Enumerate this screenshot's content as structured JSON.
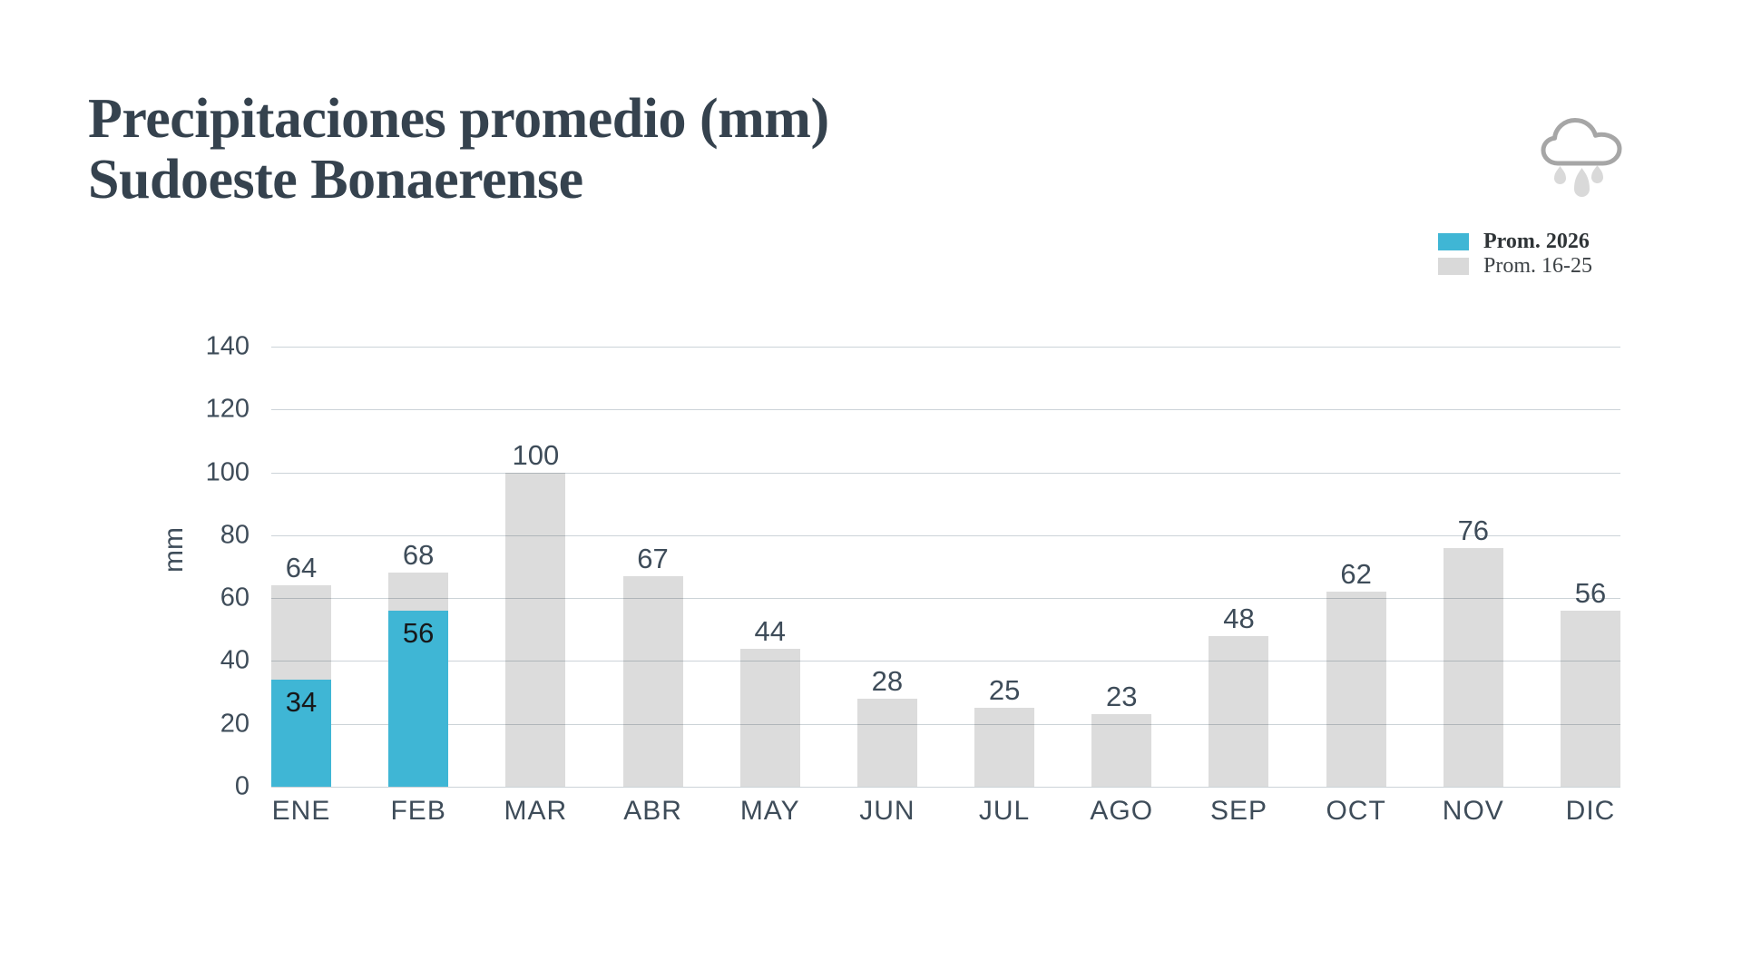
{
  "title": {
    "line1": "Precipitaciones promedio (mm)",
    "line2": "Sudoeste Bonaerense"
  },
  "legend": {
    "items": [
      {
        "label": "Prom. 2026",
        "color": "#3fb6d5",
        "bold": true
      },
      {
        "label": "Prom. 16-25",
        "color": "#d9d9d9",
        "bold": false
      }
    ]
  },
  "icons": {
    "header_icon": "rain-cloud-icon"
  },
  "chart_data": {
    "type": "bar",
    "title": "Precipitaciones promedio (mm) Sudoeste Bonaerense",
    "categories": [
      "ENE",
      "FEB",
      "MAR",
      "ABR",
      "MAY",
      "JUN",
      "JUL",
      "AGO",
      "SEP",
      "OCT",
      "NOV",
      "DIC"
    ],
    "series": [
      {
        "name": "Prom. 2026",
        "color": "#3fb6d5",
        "style": "overlay",
        "values": [
          34,
          56,
          null,
          null,
          null,
          null,
          null,
          null,
          null,
          null,
          null,
          null
        ]
      },
      {
        "name": "Prom. 16-25",
        "color": "#d9d9d9",
        "values": [
          64,
          68,
          100,
          67,
          44,
          28,
          25,
          23,
          48,
          62,
          76,
          56
        ]
      }
    ],
    "xlabel": "",
    "ylabel": "mm",
    "ylim": [
      0,
      140
    ],
    "yticks": [
      0,
      20,
      40,
      60,
      80,
      100,
      120,
      140
    ],
    "grid": true,
    "legend_position": "top-right",
    "value_labels": true
  },
  "colors": {
    "background": "#ffffff",
    "title_text": "#35424e",
    "axis_text": "#3e4c59",
    "inner_value_text": "#17181a",
    "gridline": "#ccd3d8",
    "bar_gray": "#d9d9d9",
    "bar_blue": "#3fb6d5",
    "cloud_stroke": "#a6a6a6",
    "drop_fill": "#d9d9d9"
  }
}
